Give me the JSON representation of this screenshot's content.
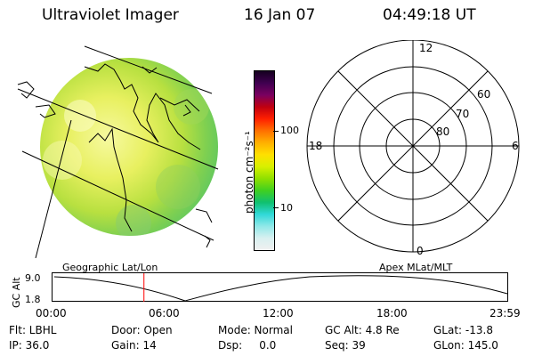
{
  "header": {
    "instrument": "Ultraviolet Imager",
    "date": "16 Jan 07",
    "time": "04:49:18 UT"
  },
  "image_panel": {
    "caption": "Geographic Lat/Lon"
  },
  "colorbar": {
    "label": "photon cm⁻²s⁻¹",
    "ticks": [
      "100",
      "10"
    ],
    "colors": [
      "#150020",
      "#400050",
      "#7a0060",
      "#c00010",
      "#ff2000",
      "#ff7000",
      "#ffb000",
      "#ffe000",
      "#d8f000",
      "#90e000",
      "#40d020",
      "#10c070",
      "#30d8d8",
      "#90e8e8",
      "#d8f0f0",
      "#f0f0f0"
    ]
  },
  "polar_plot": {
    "caption": "Apex MLat/MLT",
    "mlt_labels": [
      "12",
      "18",
      "6",
      "0"
    ],
    "lat_labels": [
      "60",
      "70",
      "80"
    ]
  },
  "timeline": {
    "ylabel": "GC Alt",
    "y_ticks": [
      "9.0",
      "1.8"
    ],
    "x_ticks": [
      "00:00",
      "06:00",
      "12:00",
      "18:00",
      "23:59"
    ],
    "marker_time": "04:49:18"
  },
  "status": {
    "row1": [
      "Flt: LBHL",
      "Door: Open",
      "Mode: Normal",
      "GC Alt: 4.8 Re",
      "GLat: -13.8"
    ],
    "row2": [
      "IP: 36.0",
      "Gain: 14",
      "Dsp:     0.0",
      "Seq: 39",
      "GLon: 145.0"
    ]
  },
  "colors": {
    "marker": "#ff0000",
    "background": "#ffffff"
  }
}
